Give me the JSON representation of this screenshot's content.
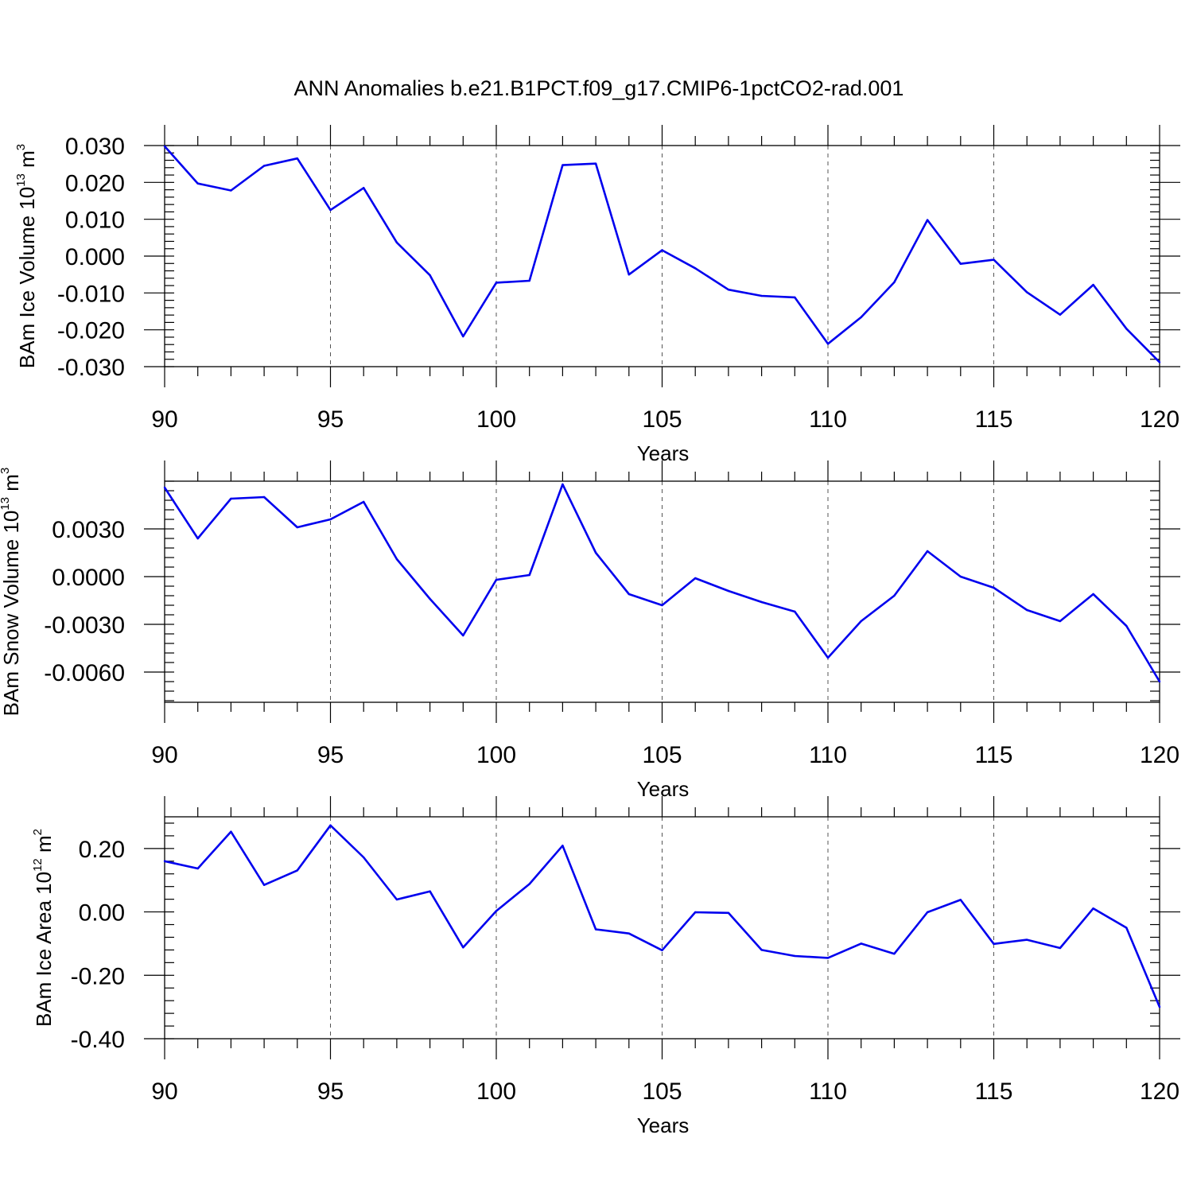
{
  "title": "ANN Anomalies b.e21.B1PCT.f09_g17.CMIP6-1pctCO2-rad.001",
  "colors": {
    "line": "#0000ee",
    "frame": "#000000",
    "grid": "#555555"
  },
  "chart_data": [
    {
      "type": "line",
      "xlabel": "Years",
      "ylabel": {
        "prefix": "BAm Ice Volume 10",
        "exponent": "13",
        "unit": " m",
        "unit_exponent": "3"
      },
      "xlim": [
        90,
        120
      ],
      "ylim": [
        -0.03,
        0.03
      ],
      "x_ticks": [
        90,
        95,
        100,
        105,
        110,
        115,
        120
      ],
      "x_tick_labels": [
        "90",
        "95",
        "100",
        "105",
        "110",
        "115",
        "120"
      ],
      "y_ticks": [
        0.03,
        0.02,
        0.01,
        0.0,
        -0.01,
        -0.02,
        -0.03
      ],
      "y_tick_labels": [
        "0.030",
        "0.020",
        "0.010",
        "0.000",
        "-0.010",
        "-0.020",
        "-0.030"
      ],
      "grid": "vertical dashed at major x ticks",
      "x": [
        90,
        91,
        92,
        93,
        94,
        95,
        96,
        97,
        98,
        99,
        100,
        101,
        102,
        103,
        104,
        105,
        106,
        107,
        108,
        109,
        110,
        111,
        112,
        113,
        114,
        115,
        116,
        117,
        118,
        119,
        120
      ],
      "values": [
        0.0298,
        0.0197,
        0.0178,
        0.0245,
        0.0265,
        0.0125,
        0.0185,
        0.0037,
        -0.0052,
        -0.0218,
        -0.0072,
        -0.0067,
        0.0247,
        0.0251,
        -0.005,
        0.0016,
        -0.0033,
        -0.0091,
        -0.0108,
        -0.0112,
        -0.0238,
        -0.0166,
        -0.0071,
        0.0098,
        -0.0021,
        -0.001,
        -0.0098,
        -0.0159,
        -0.0078,
        -0.0197,
        -0.0288
      ]
    },
    {
      "type": "line",
      "xlabel": "Years",
      "ylabel": {
        "prefix": "BAm Snow Volume 10",
        "exponent": "13",
        "unit": " m",
        "unit_exponent": "3"
      },
      "xlim": [
        90,
        120
      ],
      "ylim": [
        -0.0079,
        0.006
      ],
      "x_ticks": [
        90,
        95,
        100,
        105,
        110,
        115,
        120
      ],
      "x_tick_labels": [
        "90",
        "95",
        "100",
        "105",
        "110",
        "115",
        "120"
      ],
      "y_ticks": [
        0.003,
        0.0,
        -0.003,
        -0.006
      ],
      "y_tick_labels": [
        "0.0030",
        "0.0000",
        "-0.0030",
        "-0.0060"
      ],
      "grid": "vertical dashed at major x ticks",
      "x": [
        90,
        91,
        92,
        93,
        94,
        95,
        96,
        97,
        98,
        99,
        100,
        101,
        102,
        103,
        104,
        105,
        106,
        107,
        108,
        109,
        110,
        111,
        112,
        113,
        114,
        115,
        116,
        117,
        118,
        119,
        120
      ],
      "values": [
        0.0056,
        0.0024,
        0.0049,
        0.005,
        0.0031,
        0.0036,
        0.0047,
        0.0011,
        -0.0014,
        -0.0037,
        -0.0002,
        0.0001,
        0.0058,
        0.0015,
        -0.0011,
        -0.0018,
        -0.0001,
        -0.0009,
        -0.0016,
        -0.0022,
        -0.0051,
        -0.0028,
        -0.0012,
        0.0016,
        -0.0,
        -0.0007,
        -0.0021,
        -0.0028,
        -0.0011,
        -0.0031,
        -0.0066
      ]
    },
    {
      "type": "line",
      "xlabel": "Years",
      "ylabel": {
        "prefix": "BAm Ice Area 10",
        "exponent": "12",
        "unit": " m",
        "unit_exponent": "2"
      },
      "xlim": [
        90,
        120
      ],
      "ylim": [
        -0.4,
        0.3
      ],
      "x_ticks": [
        90,
        95,
        100,
        105,
        110,
        115,
        120
      ],
      "x_tick_labels": [
        "90",
        "95",
        "100",
        "105",
        "110",
        "115",
        "120"
      ],
      "y_ticks": [
        0.2,
        0.0,
        -0.2,
        -0.4
      ],
      "y_tick_labels": [
        "0.20",
        "0.00",
        "-0.20",
        "-0.40"
      ],
      "grid": "vertical dashed at major x ticks",
      "x": [
        90,
        91,
        92,
        93,
        94,
        95,
        96,
        97,
        98,
        99,
        100,
        101,
        102,
        103,
        104,
        105,
        106,
        107,
        108,
        109,
        110,
        111,
        112,
        113,
        114,
        115,
        116,
        117,
        118,
        119,
        120
      ],
      "values": [
        0.16,
        0.137,
        0.253,
        0.085,
        0.131,
        0.273,
        0.172,
        0.039,
        0.065,
        -0.112,
        0.003,
        0.088,
        0.209,
        -0.055,
        -0.068,
        -0.121,
        -0.001,
        -0.003,
        -0.12,
        -0.139,
        -0.145,
        -0.1,
        -0.132,
        -0.001,
        0.038,
        -0.101,
        -0.088,
        -0.114,
        0.011,
        -0.05,
        -0.3
      ]
    }
  ]
}
